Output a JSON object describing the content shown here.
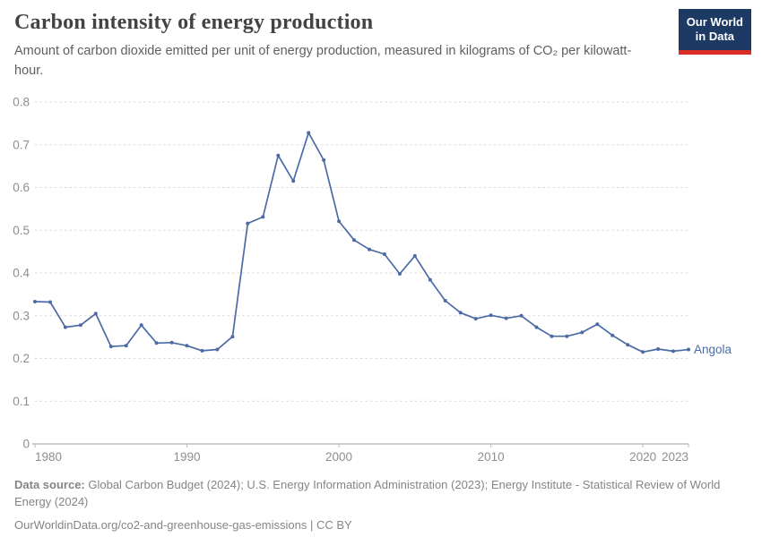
{
  "header": {
    "title": "Carbon intensity of energy production",
    "subtitle": "Amount of carbon dioxide emitted per unit of energy production, measured in kilograms of CO₂ per kilowatt-hour."
  },
  "logo": {
    "line1": "Our World",
    "line2": "in Data"
  },
  "chart_data": {
    "type": "line",
    "title": "Carbon intensity of energy production",
    "entity_label": "Angola",
    "x": [
      1980,
      1981,
      1982,
      1983,
      1984,
      1985,
      1986,
      1987,
      1988,
      1989,
      1990,
      1991,
      1992,
      1993,
      1994,
      1995,
      1996,
      1997,
      1998,
      1999,
      2000,
      2001,
      2002,
      2003,
      2004,
      2005,
      2006,
      2007,
      2008,
      2009,
      2010,
      2011,
      2012,
      2013,
      2014,
      2015,
      2016,
      2017,
      2018,
      2019,
      2020,
      2021,
      2022,
      2023
    ],
    "values": [
      0.333,
      0.332,
      0.273,
      0.278,
      0.305,
      0.228,
      0.23,
      0.278,
      0.236,
      0.237,
      0.23,
      0.218,
      0.221,
      0.251,
      0.516,
      0.531,
      0.675,
      0.615,
      0.728,
      0.664,
      0.521,
      0.477,
      0.455,
      0.444,
      0.398,
      0.44,
      0.384,
      0.335,
      0.307,
      0.293,
      0.301,
      0.294,
      0.3,
      0.273,
      0.252,
      0.252,
      0.261,
      0.28,
      0.254,
      0.232,
      0.215,
      0.222,
      0.217,
      0.221
    ],
    "xlabel": "",
    "ylabel": "",
    "xlim": [
      1980,
      2023
    ],
    "ylim": [
      0,
      0.8
    ],
    "yticks": [
      0,
      0.1,
      0.2,
      0.3,
      0.4,
      0.5,
      0.6,
      0.7,
      0.8
    ],
    "xticks": [
      1980,
      1990,
      2000,
      2010,
      2020,
      2023
    ],
    "grid": "horizontal-dashed",
    "legend_position": "end-of-line-label",
    "line_color": "#4c6ba5",
    "grid_color": "#dadada",
    "axis_color": "#a0a0a0",
    "tick_label_color": "#8e8e8e"
  },
  "footer": {
    "source_label": "Data source:",
    "source_text": " Global Carbon Budget (2024); U.S. Energy Information Administration (2023); Energy Institute - Statistical Review of World Energy (2024)",
    "link_line": "OurWorldinData.org/co2-and-greenhouse-gas-emissions | CC BY"
  }
}
